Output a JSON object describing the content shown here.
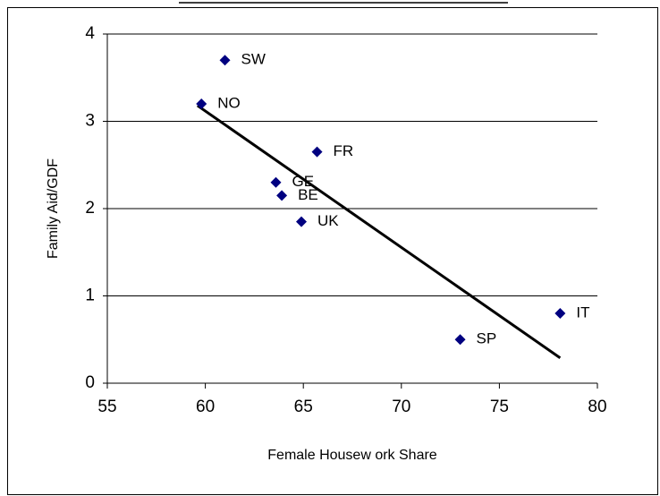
{
  "chart_data": {
    "type": "scatter",
    "x_label": "Female Housew ork Share",
    "y_label": "Family Aid/GDF",
    "labels": [
      "SW",
      "NO",
      "FR",
      "GE",
      "BE",
      "UK",
      "SP",
      "IT"
    ],
    "x": [
      61.0,
      59.8,
      65.7,
      63.6,
      63.9,
      64.9,
      73.0,
      78.1
    ],
    "y": [
      3.7,
      3.2,
      2.65,
      2.3,
      2.15,
      1.85,
      0.5,
      0.8
    ],
    "color": "#000080",
    "trendline": {
      "x": [
        59.6,
        78.1
      ],
      "y": [
        3.18,
        0.29
      ],
      "color": "#000000"
    },
    "xlim": [
      55,
      80
    ],
    "xticks": [
      55,
      60,
      65,
      70,
      75,
      80
    ],
    "ylim": [
      0,
      4
    ],
    "yticks": [
      0,
      1,
      2,
      3,
      4
    ],
    "grid": true
  }
}
